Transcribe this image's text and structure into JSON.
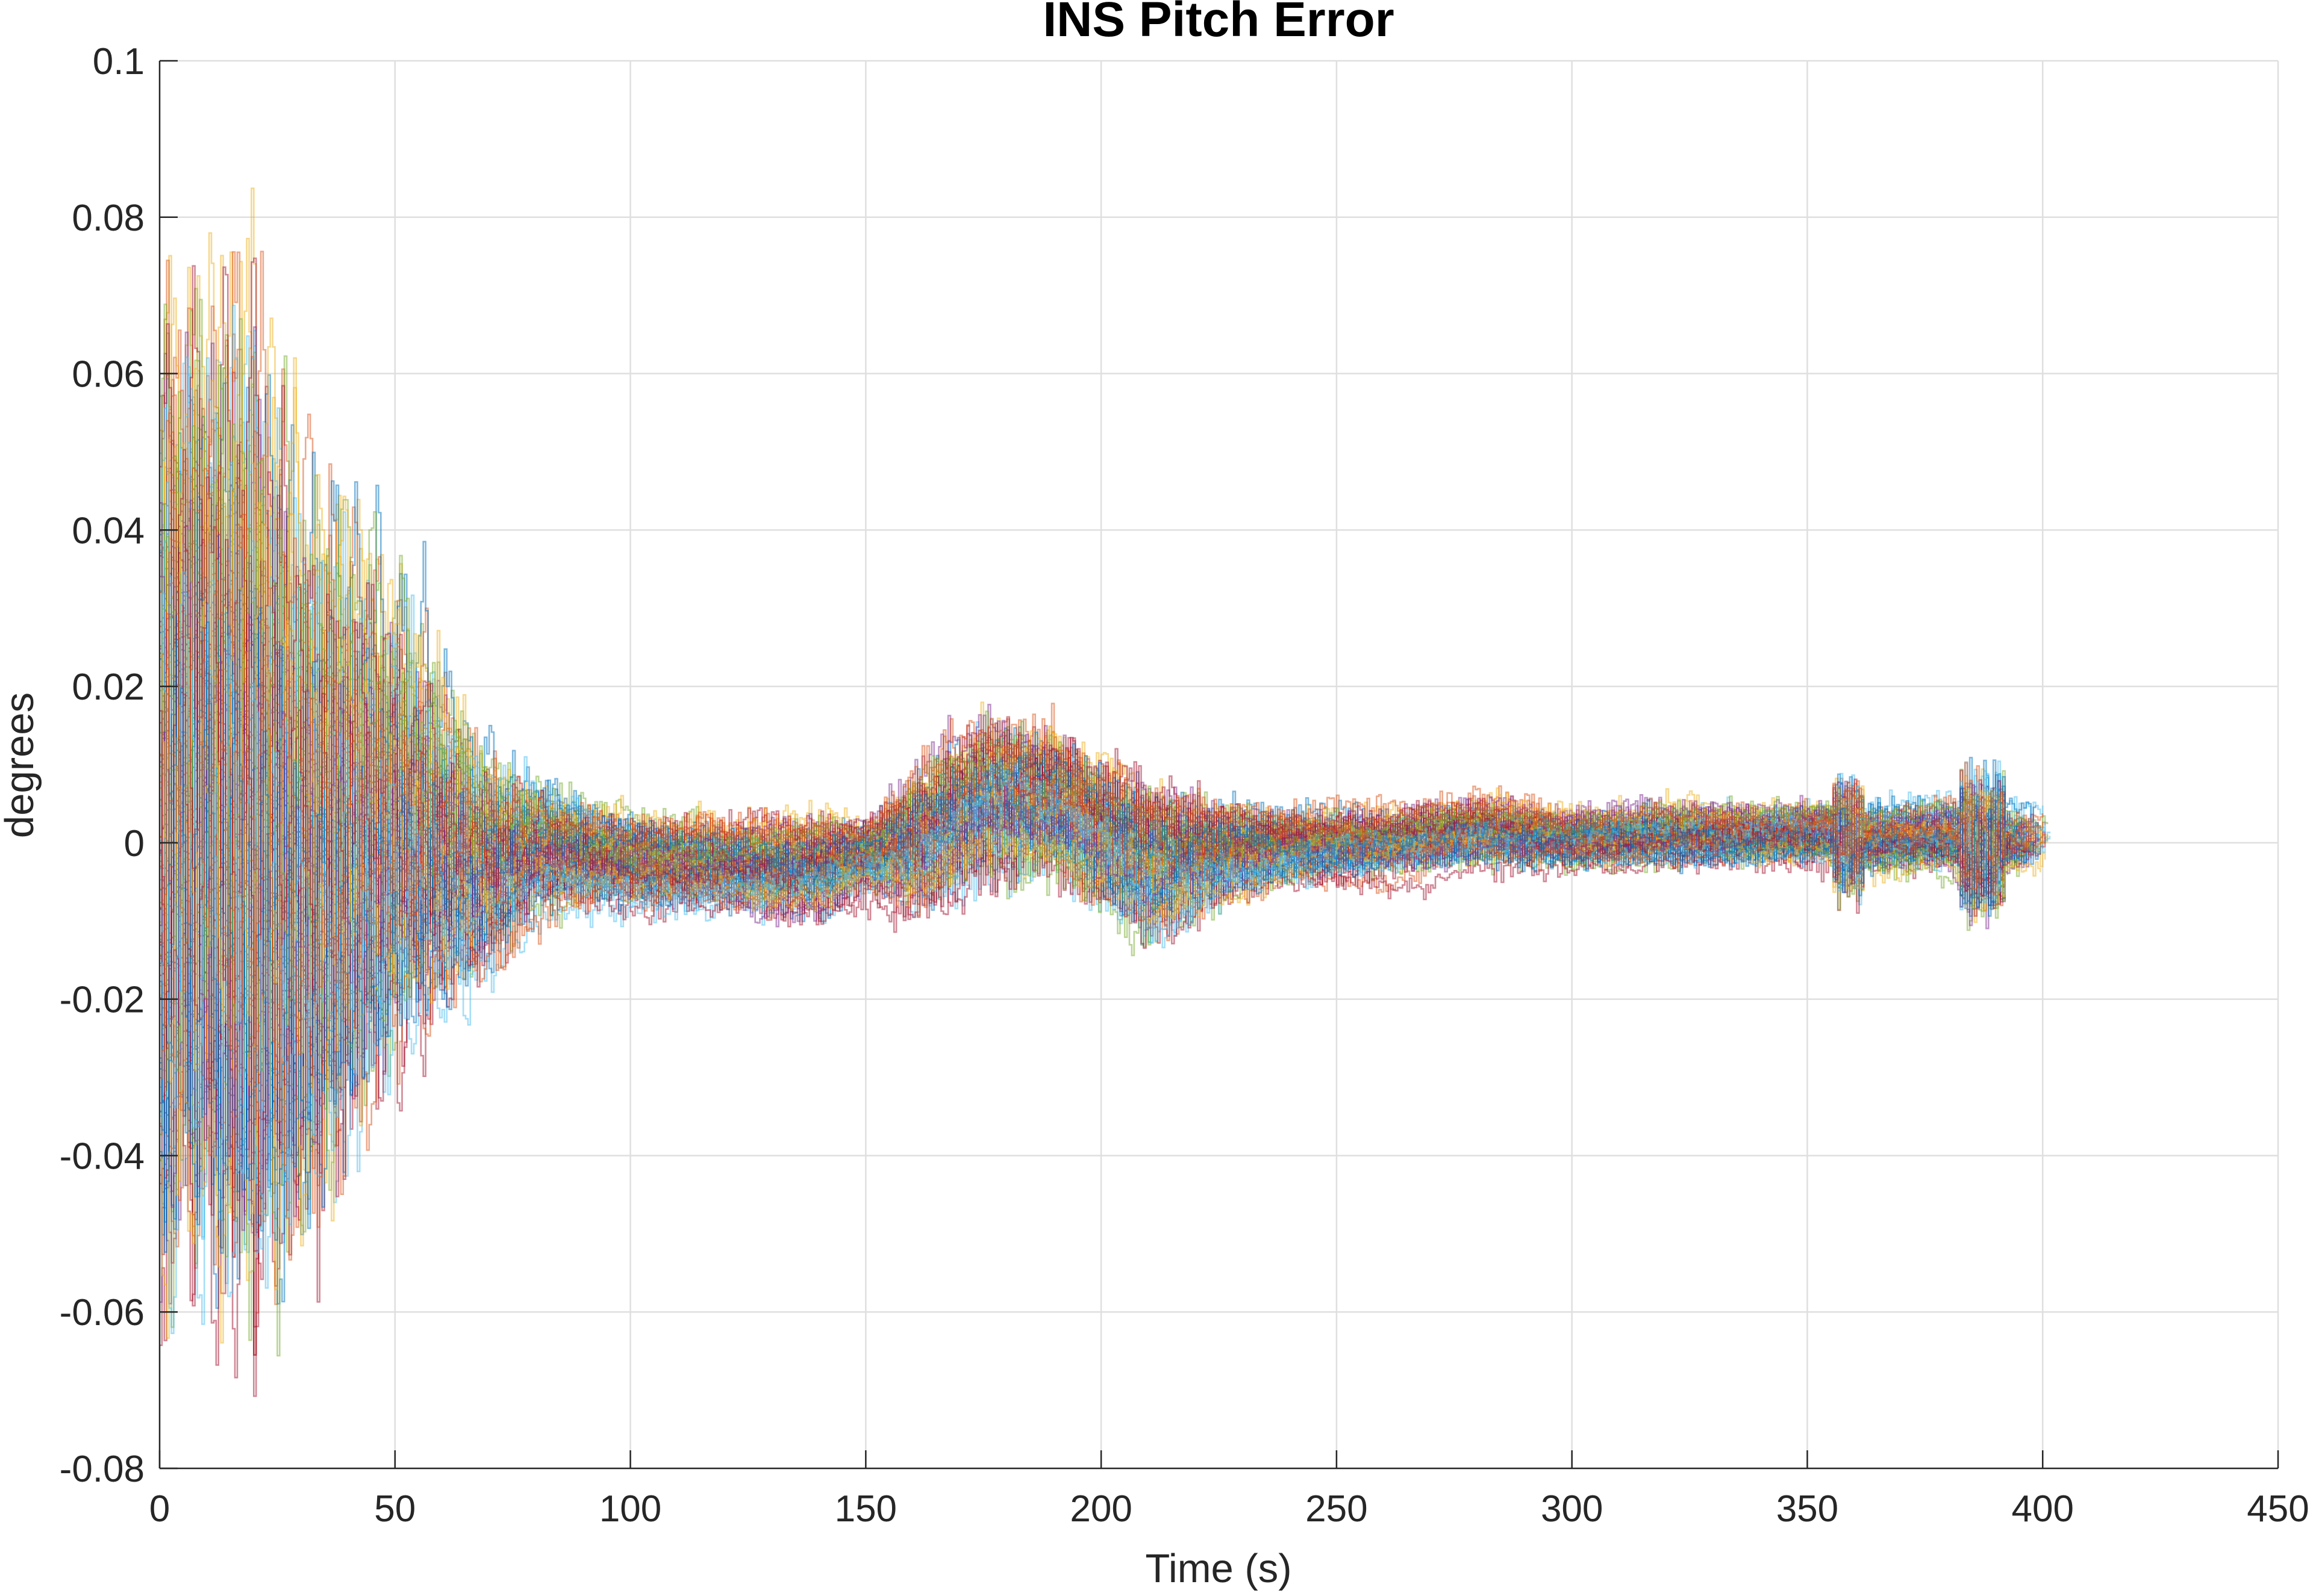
{
  "chart_data": {
    "type": "line",
    "title": "INS Pitch Error",
    "xlabel": "Time (s)",
    "ylabel": "degrees",
    "xlim": [
      0,
      450
    ],
    "ylim": [
      -0.08,
      0.1
    ],
    "xticks": [
      0,
      50,
      100,
      150,
      200,
      250,
      300,
      350,
      400,
      450
    ],
    "xtick_labels": [
      "0",
      "50",
      "100",
      "150",
      "200",
      "250",
      "300",
      "350",
      "400",
      "450"
    ],
    "yticks": [
      -0.08,
      -0.06,
      -0.04,
      -0.02,
      0,
      0.02,
      0.04,
      0.06,
      0.08,
      0.1
    ],
    "ytick_labels": [
      "-0.08",
      "-0.06",
      "-0.04",
      "-0.02",
      "0",
      "0.02",
      "0.04",
      "0.06",
      "0.08",
      "0.1"
    ],
    "grid": true,
    "legend": "none",
    "series_count": 100,
    "series_colors": [
      "#0072BD",
      "#D95319",
      "#EDB120",
      "#7E2F8E",
      "#77AC30",
      "#4DBEEE",
      "#A2142F"
    ],
    "envelope": {
      "description_values": "approximate +/- band of the Monte Carlo pitch error runs (degrees)",
      "t": [
        0,
        5,
        10,
        20,
        30,
        40,
        50,
        60,
        70,
        80,
        100,
        120,
        140,
        150,
        160,
        175,
        190,
        200,
        210,
        225,
        240,
        260,
        280,
        300,
        320,
        340,
        355,
        360,
        380,
        385,
        392,
        400
      ],
      "upper": [
        0.07,
        0.08,
        0.08,
        0.087,
        0.065,
        0.061,
        0.05,
        0.037,
        0.025,
        0.018,
        0.012,
        0.01,
        0.012,
        0.01,
        0.022,
        0.031,
        0.03,
        0.027,
        0.024,
        0.016,
        0.012,
        0.011,
        0.013,
        0.011,
        0.011,
        0.011,
        0.012,
        0.011,
        0.012,
        0.011,
        0.01,
        0.009
      ],
      "lower": [
        -0.063,
        -0.06,
        -0.064,
        -0.078,
        -0.072,
        -0.06,
        -0.045,
        -0.037,
        -0.03,
        -0.019,
        -0.017,
        -0.016,
        -0.018,
        -0.013,
        -0.022,
        -0.019,
        -0.02,
        -0.025,
        -0.029,
        -0.018,
        -0.013,
        -0.011,
        -0.01,
        -0.01,
        -0.009,
        -0.009,
        -0.009,
        -0.01,
        -0.01,
        -0.012,
        -0.01,
        -0.008
      ]
    },
    "series_end_time": [
      392,
      402
    ]
  }
}
